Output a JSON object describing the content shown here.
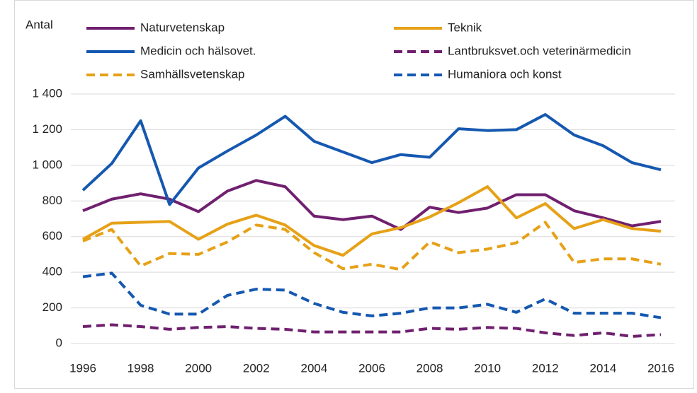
{
  "chart_data": {
    "type": "line",
    "ylabel": "Antal",
    "x": [
      1996,
      1997,
      1998,
      1999,
      2000,
      2001,
      2002,
      2003,
      2004,
      2005,
      2006,
      2007,
      2008,
      2009,
      2010,
      2011,
      2012,
      2013,
      2014,
      2015,
      2016
    ],
    "xlim": [
      1996,
      2016
    ],
    "xticks": [
      1996,
      1998,
      2000,
      2002,
      2004,
      2006,
      2008,
      2010,
      2012,
      2014,
      2016
    ],
    "ylim": [
      0,
      1400
    ],
    "yticks": [
      0,
      200,
      400,
      600,
      800,
      {
        "value": 1000,
        "label": "1 000"
      },
      {
        "value": 1200,
        "label": "1 200"
      },
      {
        "value": 1400,
        "label": "1 400"
      }
    ],
    "grid": true,
    "series": [
      {
        "name": "Naturvetenskap",
        "color": "#70206f",
        "dashed": false,
        "values": [
          745,
          810,
          840,
          810,
          740,
          855,
          915,
          880,
          715,
          695,
          715,
          640,
          765,
          735,
          760,
          835,
          835,
          745,
          705,
          660,
          685
        ]
      },
      {
        "name": "Teknik",
        "color": "#e6a117",
        "dashed": false,
        "values": [
          585,
          675,
          680,
          685,
          585,
          670,
          720,
          665,
          550,
          495,
          615,
          650,
          710,
          790,
          880,
          705,
          785,
          645,
          695,
          645,
          630
        ]
      },
      {
        "name": "Medicin och hälsovet.",
        "color": "#1558b0",
        "dashed": false,
        "values": [
          860,
          1010,
          1250,
          780,
          985,
          1080,
          1170,
          1275,
          1135,
          1075,
          1015,
          1060,
          1045,
          1205,
          1195,
          1200,
          1285,
          1170,
          1110,
          1015,
          975
        ]
      },
      {
        "name": "Lantbruksvet.och veterinärmedicin",
        "color": "#70206f",
        "dashed": true,
        "values": [
          95,
          105,
          95,
          80,
          90,
          95,
          85,
          80,
          65,
          65,
          65,
          65,
          85,
          80,
          90,
          85,
          60,
          45,
          60,
          40,
          50
        ]
      },
      {
        "name": "Samhällsvetenskap",
        "color": "#e6a117",
        "dashed": true,
        "values": [
          575,
          640,
          435,
          505,
          500,
          570,
          665,
          640,
          510,
          420,
          445,
          415,
          570,
          510,
          530,
          565,
          680,
          455,
          475,
          475,
          445
        ]
      },
      {
        "name": "Humaniora och konst",
        "color": "#1558b0",
        "dashed": true,
        "values": [
          375,
          395,
          215,
          165,
          165,
          270,
          305,
          300,
          225,
          175,
          155,
          170,
          200,
          200,
          220,
          175,
          250,
          170,
          170,
          170,
          145
        ]
      }
    ]
  }
}
